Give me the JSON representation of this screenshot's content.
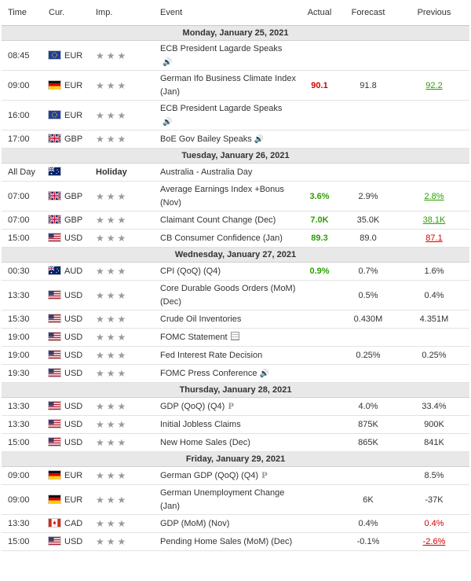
{
  "header": {
    "time": "Time",
    "cur": "Cur.",
    "imp": "Imp.",
    "event": "Event",
    "actual": "Actual",
    "forecast": "Forecast",
    "previous": "Previous"
  },
  "days": [
    {
      "date": "Monday, January 25, 2021",
      "rows": [
        {
          "time": "08:45",
          "flag": "eu",
          "cur": "EUR",
          "event": "ECB President Lagarde Speaks",
          "icon": "speaker-below",
          "actual": "",
          "forecast": "",
          "previous": "",
          "ps": ""
        },
        {
          "time": "09:00",
          "flag": "de",
          "cur": "EUR",
          "event": "German Ifo Business Climate Index (Jan)",
          "actual": "90.1",
          "as": "red",
          "forecast": "91.8",
          "previous": "92.2",
          "ps": "green"
        },
        {
          "time": "16:00",
          "flag": "eu",
          "cur": "EUR",
          "event": "ECB President Lagarde Speaks",
          "icon": "speaker-below",
          "actual": "",
          "forecast": "",
          "previous": "",
          "ps": ""
        },
        {
          "time": "17:00",
          "flag": "gb",
          "cur": "GBP",
          "event": "BoE Gov Bailey Speaks",
          "icon": "speaker",
          "actual": "",
          "forecast": "",
          "previous": "",
          "ps": ""
        }
      ]
    },
    {
      "date": "Tuesday, January 26, 2021",
      "rows": [
        {
          "time": "All Day",
          "flag": "au",
          "cur": "",
          "holiday": "Holiday",
          "event": "Australia - Australia Day",
          "actual": "",
          "forecast": "",
          "previous": "",
          "ps": ""
        },
        {
          "time": "07:00",
          "flag": "gb",
          "cur": "GBP",
          "event": "Average Earnings Index +Bonus (Nov)",
          "actual": "3.6%",
          "as": "green",
          "forecast": "2.9%",
          "previous": "2.8%",
          "ps": "green"
        },
        {
          "time": "07:00",
          "flag": "gb",
          "cur": "GBP",
          "event": "Claimant Count Change (Dec)",
          "actual": "7.0K",
          "as": "green",
          "forecast": "35.0K",
          "previous": "38.1K",
          "ps": "green"
        },
        {
          "time": "15:00",
          "flag": "us",
          "cur": "USD",
          "event": "CB Consumer Confidence (Jan)",
          "actual": "89.3",
          "as": "green",
          "forecast": "89.0",
          "previous": "87.1",
          "ps": "red"
        }
      ]
    },
    {
      "date": "Wednesday, January 27, 2021",
      "rows": [
        {
          "time": "00:30",
          "flag": "au",
          "cur": "AUD",
          "event": "CPI (QoQ) (Q4)",
          "actual": "0.9%",
          "as": "green",
          "forecast": "0.7%",
          "previous": "1.6%",
          "ps": ""
        },
        {
          "time": "13:30",
          "flag": "us",
          "cur": "USD",
          "event": "Core Durable Goods Orders (MoM) (Dec)",
          "actual": "",
          "forecast": "0.5%",
          "previous": "0.4%",
          "ps": ""
        },
        {
          "time": "15:30",
          "flag": "us",
          "cur": "USD",
          "event": "Crude Oil Inventories",
          "actual": "",
          "forecast": "0.430M",
          "previous": "4.351M",
          "ps": ""
        },
        {
          "time": "19:00",
          "flag": "us",
          "cur": "USD",
          "event": "FOMC Statement",
          "icon": "doc",
          "actual": "",
          "forecast": "",
          "previous": "",
          "ps": ""
        },
        {
          "time": "19:00",
          "flag": "us",
          "cur": "USD",
          "event": "Fed Interest Rate Decision",
          "actual": "",
          "forecast": "0.25%",
          "previous": "0.25%",
          "ps": ""
        },
        {
          "time": "19:30",
          "flag": "us",
          "cur": "USD",
          "event": "FOMC Press Conference",
          "icon": "speaker",
          "actual": "",
          "forecast": "",
          "previous": "",
          "ps": ""
        }
      ]
    },
    {
      "date": "Thursday, January 28, 2021",
      "rows": [
        {
          "time": "13:30",
          "flag": "us",
          "cur": "USD",
          "event": "GDP (QoQ) (Q4)",
          "icon": "prelim",
          "actual": "",
          "forecast": "4.0%",
          "previous": "33.4%",
          "ps": ""
        },
        {
          "time": "13:30",
          "flag": "us",
          "cur": "USD",
          "event": "Initial Jobless Claims",
          "actual": "",
          "forecast": "875K",
          "previous": "900K",
          "ps": ""
        },
        {
          "time": "15:00",
          "flag": "us",
          "cur": "USD",
          "event": "New Home Sales (Dec)",
          "actual": "",
          "forecast": "865K",
          "previous": "841K",
          "ps": ""
        }
      ]
    },
    {
      "date": "Friday, January 29, 2021",
      "rows": [
        {
          "time": "09:00",
          "flag": "de",
          "cur": "EUR",
          "event": "German GDP (QoQ) (Q4)",
          "icon": "prelim",
          "actual": "",
          "forecast": "",
          "previous": "8.5%",
          "ps": ""
        },
        {
          "time": "09:00",
          "flag": "de",
          "cur": "EUR",
          "event": "German Unemployment Change (Jan)",
          "actual": "",
          "forecast": "6K",
          "previous": "-37K",
          "ps": ""
        },
        {
          "time": "13:30",
          "flag": "ca",
          "cur": "CAD",
          "event": "GDP (MoM) (Nov)",
          "actual": "",
          "forecast": "0.4%",
          "previous": "0.4%",
          "ps": "red-plain"
        },
        {
          "time": "15:00",
          "flag": "us",
          "cur": "USD",
          "event": "Pending Home Sales (MoM) (Dec)",
          "actual": "",
          "forecast": "-0.1%",
          "previous": "-2.6%",
          "ps": "red"
        }
      ]
    }
  ],
  "stars": "★★★",
  "prelim_mark": "P",
  "speaker_glyph": "🔊"
}
